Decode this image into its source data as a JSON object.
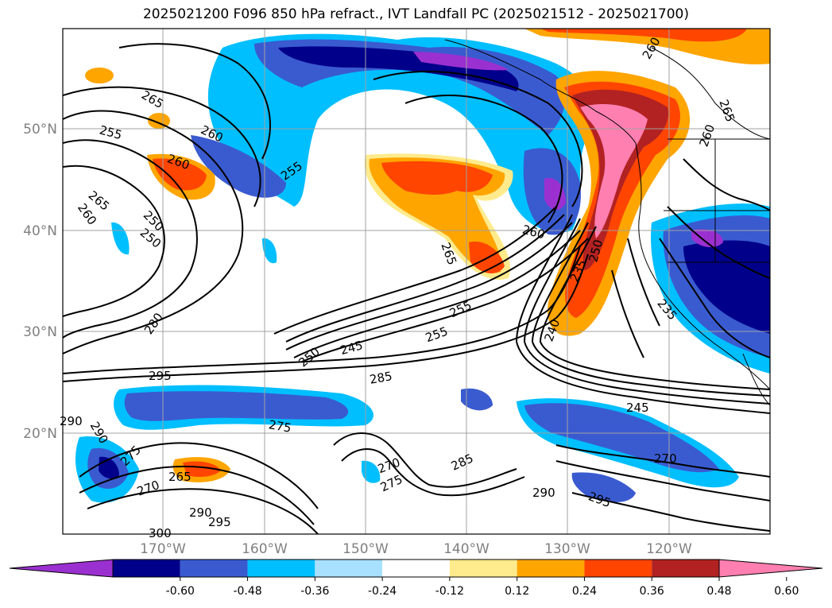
{
  "title": "2025021200 F096 850 hPa refract., IVT Landfall PC (2025021512 - 2025021700)",
  "map": {
    "lat_labels": [
      "50°N",
      "40°N",
      "30°N",
      "20°N"
    ],
    "lon_labels": [
      "170°W",
      "160°W",
      "150°W",
      "140°W",
      "130°W",
      "120°W"
    ],
    "contour_labels": [
      "265",
      "255",
      "260",
      "260",
      "255",
      "265",
      "250",
      "260",
      "250",
      "280",
      "295",
      "290",
      "290",
      "275",
      "270",
      "265",
      "275",
      "290",
      "295",
      "300",
      "250",
      "245",
      "255",
      "255",
      "285",
      "270",
      "275",
      "285",
      "290",
      "295",
      "260",
      "265",
      "260",
      "265",
      "260",
      "235",
      "250",
      "240",
      "245",
      "270",
      "235"
    ]
  },
  "colorbar": {
    "colors": [
      "#9b30d0",
      "#00008b",
      "#3a5bd0",
      "#00bfff",
      "#a8e0ff",
      "#ffffff",
      "#ffeb8c",
      "#ffa500",
      "#ff4500",
      "#b22222",
      "#ff7fb0"
    ],
    "ticks": [
      "-0.60",
      "-0.48",
      "-0.36",
      "-0.24",
      "-0.12",
      "0.12",
      "0.24",
      "0.36",
      "0.48",
      "0.60"
    ]
  }
}
